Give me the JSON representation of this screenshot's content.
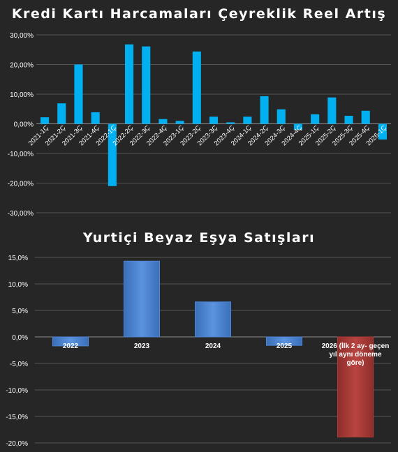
{
  "chart_data": [
    {
      "type": "bar",
      "title": "Kredi Kartı Harcamaları Çeyreklik Reel Artış",
      "categories": [
        "2021-1Ç",
        "2021-2Ç",
        "2021-3Ç",
        "2021-4Ç",
        "2022-1Ç",
        "2022-2Ç",
        "2022-3Ç",
        "2022-4Ç",
        "2023-1Ç",
        "2023-2Ç",
        "2023-3Ç",
        "2023-4Ç",
        "2024-1Ç",
        "2024-2Ç",
        "2024-3Ç",
        "2024-4Ç",
        "2025-1Ç",
        "2025-2Ç",
        "2025-3Ç",
        "2025-4Ç",
        "2026-1Ç"
      ],
      "values": [
        2.2,
        6.9,
        20.0,
        3.9,
        -21.0,
        26.8,
        26.1,
        1.6,
        1.0,
        24.4,
        2.4,
        0.5,
        2.4,
        9.3,
        4.9,
        -2.0,
        3.2,
        8.9,
        2.7,
        4.4,
        -5.3
      ],
      "ylim": [
        -30,
        30
      ],
      "yticks": [
        30,
        20,
        10,
        0,
        -10,
        -20,
        -30
      ],
      "ytick_labels": [
        "30,00%",
        "20,00%",
        "10,00%",
        "0,00%",
        "-10,00%",
        "-20,00%",
        "-30,00%"
      ],
      "xlabel": "",
      "ylabel": "",
      "grid": true,
      "bar_color": "#00b0f0"
    },
    {
      "type": "bar",
      "title": "Yurtiçi Beyaz Eşya Satışları",
      "categories": [
        "2022",
        "2023",
        "2024",
        "2025",
        "2026 (İlk 2 ay- geçen yıl aynı döneme göre)"
      ],
      "category_lines": [
        [
          "2022"
        ],
        [
          "2023"
        ],
        [
          "2024"
        ],
        [
          "2025"
        ],
        [
          "2026 (İlk 2 ay- geçen",
          "yıl aynı döneme",
          "göre)"
        ]
      ],
      "values": [
        -1.7,
        14.3,
        6.6,
        -1.6,
        -18.9
      ],
      "ylim": [
        -20,
        15
      ],
      "yticks": [
        15,
        10,
        5,
        0,
        -5,
        -10,
        -15,
        -20
      ],
      "ytick_labels": [
        "15,0%",
        "10,0%",
        "5,0%",
        "0,0%",
        "-5,0%",
        "-10,0%",
        "-15,0%",
        "-20,0%"
      ],
      "xlabel": "",
      "ylabel": "",
      "grid": true,
      "bar_colors": [
        "#4f86d6",
        "#4f86d6",
        "#4f86d6",
        "#4f86d6",
        "#b03a36"
      ]
    }
  ]
}
